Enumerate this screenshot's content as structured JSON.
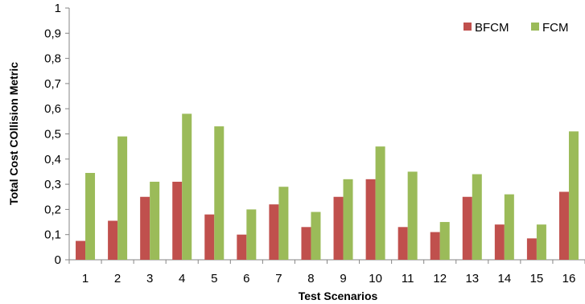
{
  "chart_data": {
    "type": "bar",
    "title": "",
    "xlabel": "Test Scenarios",
    "ylabel": "Total Cost COllision Metric",
    "categories": [
      "1",
      "2",
      "3",
      "4",
      "5",
      "6",
      "7",
      "8",
      "9",
      "10",
      "11",
      "12",
      "13",
      "14",
      "15",
      "16"
    ],
    "series": [
      {
        "name": "BFCM",
        "color": "#c0504d",
        "values": [
          0.075,
          0.155,
          0.25,
          0.31,
          0.18,
          0.1,
          0.22,
          0.13,
          0.25,
          0.32,
          0.13,
          0.11,
          0.25,
          0.14,
          0.085,
          0.27
        ]
      },
      {
        "name": "FCM",
        "color": "#9bbb59",
        "values": [
          0.345,
          0.49,
          0.31,
          0.58,
          0.53,
          0.2,
          0.29,
          0.19,
          0.32,
          0.45,
          0.35,
          0.15,
          0.34,
          0.26,
          0.14,
          0.51
        ]
      }
    ],
    "ylim": [
      0,
      1
    ],
    "yticks": [
      "0",
      "0,1",
      "0,2",
      "0,3",
      "0,4",
      "0,5",
      "0,6",
      "0,7",
      "0,8",
      "0,9",
      "1"
    ],
    "grid": false,
    "legend_position": "top-right"
  }
}
